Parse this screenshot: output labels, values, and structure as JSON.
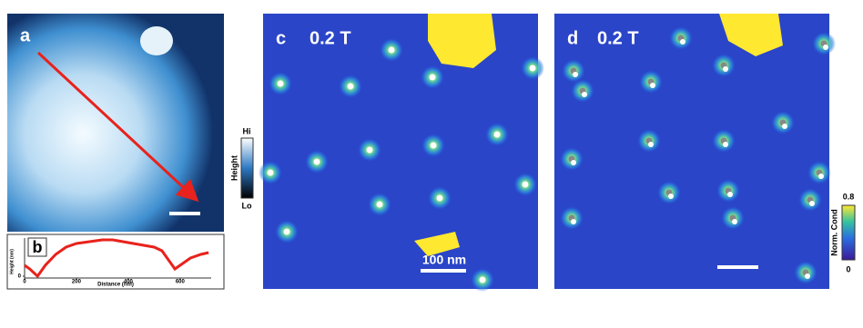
{
  "panels": {
    "a": {
      "label": "a"
    },
    "c": {
      "label": "c",
      "field": "0.2 T",
      "scale_bar": "100 nm"
    },
    "d": {
      "label": "d",
      "field": "0.2 T"
    }
  },
  "height_colorbar": {
    "title": "Height",
    "high": "Hi",
    "low": "Lo"
  },
  "cond_colorbar": {
    "title": "Norm. Cond",
    "max": "0.8",
    "min": "0"
  },
  "chart_data": {
    "type": "line",
    "label": "b",
    "x_label": "Distance (nm)",
    "y_label": "Height (nm)",
    "x": [
      0,
      20,
      50,
      80,
      120,
      160,
      200,
      250,
      300,
      340,
      380,
      420,
      460,
      500,
      530,
      560,
      580,
      600,
      640,
      680,
      710
    ],
    "series": [
      {
        "color": "#e8221c",
        "values": [
          3,
          2,
          0,
          3,
          6,
          8,
          9,
          9.5,
          10,
          10,
          9.5,
          9,
          8.5,
          8,
          7,
          4,
          2,
          3,
          5,
          6,
          6.5
        ]
      }
    ],
    "xlim": [
      0,
      720
    ],
    "xticks": [
      0,
      200,
      400,
      600
    ],
    "ylim": [
      -0.5,
      10.5
    ],
    "yticks": [
      0
    ]
  }
}
